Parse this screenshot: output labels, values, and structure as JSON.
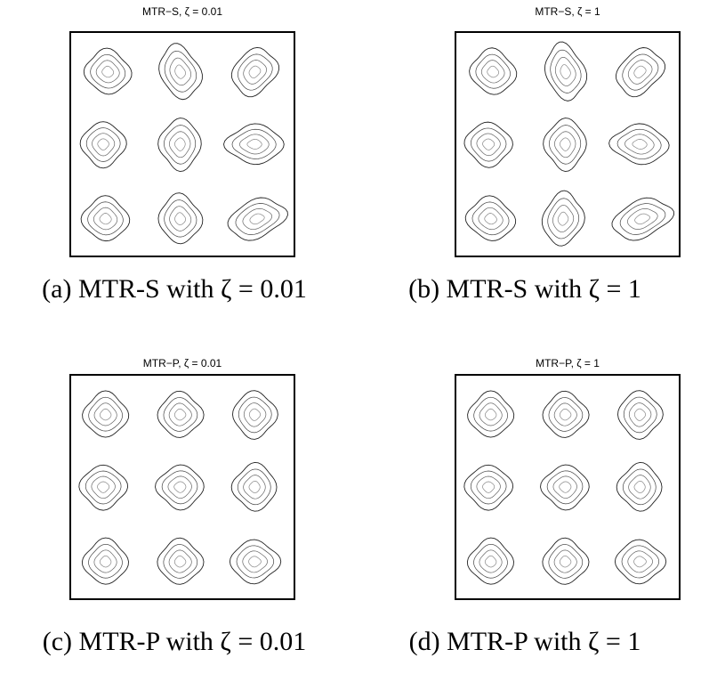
{
  "chart_data": [
    {
      "type": "contour",
      "title": "MTR−S,  ζ = 0.01",
      "caption": "(a) MTR-S with ζ = 0.01",
      "xlim": [
        0,
        1
      ],
      "ylim": [
        0,
        1
      ],
      "grid": false,
      "levels": 4,
      "centers": [
        {
          "x": 0.17,
          "y": 0.82,
          "stretch": 1.05,
          "tilt": 30
        },
        {
          "x": 0.49,
          "y": 0.82,
          "stretch": 1.25,
          "tilt": 70
        },
        {
          "x": 0.82,
          "y": 0.82,
          "stretch": 1.15,
          "tilt": 130
        },
        {
          "x": 0.15,
          "y": 0.5,
          "stretch": 1.0,
          "tilt": 0
        },
        {
          "x": 0.49,
          "y": 0.5,
          "stretch": 1.15,
          "tilt": 90
        },
        {
          "x": 0.82,
          "y": 0.5,
          "stretch": 1.3,
          "tilt": 0
        },
        {
          "x": 0.16,
          "y": 0.17,
          "stretch": 1.05,
          "tilt": 10
        },
        {
          "x": 0.49,
          "y": 0.17,
          "stretch": 1.1,
          "tilt": 80
        },
        {
          "x": 0.83,
          "y": 0.17,
          "stretch": 1.35,
          "tilt": 160
        }
      ]
    },
    {
      "type": "contour",
      "title": "MTR−S,  ζ = 1",
      "caption": "(b) MTR-S with ζ = 1",
      "xlim": [
        0,
        1
      ],
      "ylim": [
        0,
        1
      ],
      "grid": false,
      "levels": 4,
      "centers": [
        {
          "x": 0.17,
          "y": 0.82,
          "stretch": 1.05,
          "tilt": 40
        },
        {
          "x": 0.49,
          "y": 0.82,
          "stretch": 1.3,
          "tilt": 75
        },
        {
          "x": 0.82,
          "y": 0.82,
          "stretch": 1.2,
          "tilt": 135
        },
        {
          "x": 0.15,
          "y": 0.5,
          "stretch": 1.05,
          "tilt": 15
        },
        {
          "x": 0.49,
          "y": 0.5,
          "stretch": 1.15,
          "tilt": 90
        },
        {
          "x": 0.82,
          "y": 0.5,
          "stretch": 1.3,
          "tilt": 5
        },
        {
          "x": 0.16,
          "y": 0.17,
          "stretch": 1.1,
          "tilt": 20
        },
        {
          "x": 0.48,
          "y": 0.17,
          "stretch": 1.2,
          "tilt": 100
        },
        {
          "x": 0.83,
          "y": 0.17,
          "stretch": 1.4,
          "tilt": 160
        }
      ]
    },
    {
      "type": "contour",
      "title": "MTR−P,  ζ = 0.01",
      "caption": "(c) MTR-P with ζ = 0.01",
      "xlim": [
        0,
        1
      ],
      "ylim": [
        0,
        1
      ],
      "grid": false,
      "levels": 4,
      "centers": [
        {
          "x": 0.16,
          "y": 0.82,
          "stretch": 1.0,
          "tilt": 0
        },
        {
          "x": 0.49,
          "y": 0.82,
          "stretch": 1.0,
          "tilt": 0
        },
        {
          "x": 0.82,
          "y": 0.82,
          "stretch": 1.05,
          "tilt": 90
        },
        {
          "x": 0.15,
          "y": 0.5,
          "stretch": 1.05,
          "tilt": 0
        },
        {
          "x": 0.49,
          "y": 0.5,
          "stretch": 1.05,
          "tilt": 0
        },
        {
          "x": 0.82,
          "y": 0.5,
          "stretch": 1.05,
          "tilt": 90
        },
        {
          "x": 0.16,
          "y": 0.17,
          "stretch": 1.0,
          "tilt": 0
        },
        {
          "x": 0.49,
          "y": 0.17,
          "stretch": 1.0,
          "tilt": 0
        },
        {
          "x": 0.82,
          "y": 0.17,
          "stretch": 1.1,
          "tilt": 0
        }
      ]
    },
    {
      "type": "contour",
      "title": "MTR−P,  ζ = 1",
      "caption": "(d) MTR-P with ζ = 1",
      "xlim": [
        0,
        1
      ],
      "ylim": [
        0,
        1
      ],
      "grid": false,
      "levels": 4,
      "centers": [
        {
          "x": 0.16,
          "y": 0.82,
          "stretch": 1.0,
          "tilt": 0
        },
        {
          "x": 0.49,
          "y": 0.82,
          "stretch": 1.0,
          "tilt": 0
        },
        {
          "x": 0.82,
          "y": 0.82,
          "stretch": 1.05,
          "tilt": 90
        },
        {
          "x": 0.15,
          "y": 0.5,
          "stretch": 1.05,
          "tilt": 0
        },
        {
          "x": 0.49,
          "y": 0.5,
          "stretch": 1.05,
          "tilt": 0
        },
        {
          "x": 0.82,
          "y": 0.5,
          "stretch": 1.05,
          "tilt": 90
        },
        {
          "x": 0.16,
          "y": 0.17,
          "stretch": 1.0,
          "tilt": 0
        },
        {
          "x": 0.49,
          "y": 0.17,
          "stretch": 1.0,
          "tilt": 0
        },
        {
          "x": 0.82,
          "y": 0.17,
          "stretch": 1.1,
          "tilt": 0
        }
      ]
    }
  ]
}
